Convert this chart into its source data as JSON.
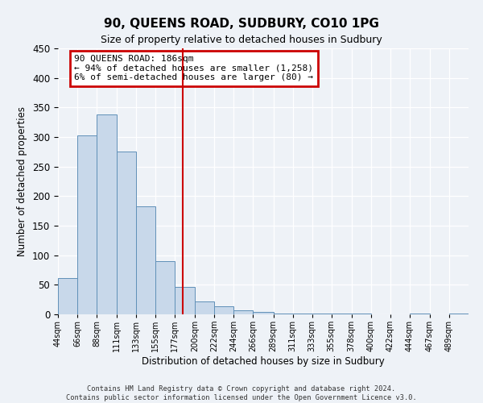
{
  "title": "90, QUEENS ROAD, SUDBURY, CO10 1PG",
  "subtitle": "Size of property relative to detached houses in Sudbury",
  "xlabel": "Distribution of detached houses by size in Sudbury",
  "ylabel": "Number of detached properties",
  "bin_labels": [
    "44sqm",
    "66sqm",
    "88sqm",
    "111sqm",
    "133sqm",
    "155sqm",
    "177sqm",
    "200sqm",
    "222sqm",
    "244sqm",
    "266sqm",
    "289sqm",
    "311sqm",
    "333sqm",
    "355sqm",
    "378sqm",
    "400sqm",
    "422sqm",
    "444sqm",
    "467sqm",
    "489sqm"
  ],
  "bin_edges": [
    44,
    66,
    88,
    111,
    133,
    155,
    177,
    200,
    222,
    244,
    266,
    289,
    311,
    333,
    355,
    378,
    400,
    422,
    444,
    467,
    489,
    511
  ],
  "bar_heights": [
    62,
    303,
    338,
    275,
    183,
    90,
    46,
    22,
    13,
    7,
    4,
    2,
    2,
    1,
    1,
    1,
    0,
    0,
    1,
    0,
    1
  ],
  "bar_color": "#c8d8ea",
  "bar_edge_color": "#6090b8",
  "vline_x": 186,
  "vline_color": "#cc0000",
  "ylim": [
    0,
    450
  ],
  "yticks": [
    0,
    50,
    100,
    150,
    200,
    250,
    300,
    350,
    400,
    450
  ],
  "annotation_title": "90 QUEENS ROAD: 186sqm",
  "annotation_line1": "← 94% of detached houses are smaller (1,258)",
  "annotation_line2": "6% of semi-detached houses are larger (80) →",
  "annotation_box_color": "#cc0000",
  "footer_line1": "Contains HM Land Registry data © Crown copyright and database right 2024.",
  "footer_line2": "Contains public sector information licensed under the Open Government Licence v3.0.",
  "background_color": "#eef2f7"
}
